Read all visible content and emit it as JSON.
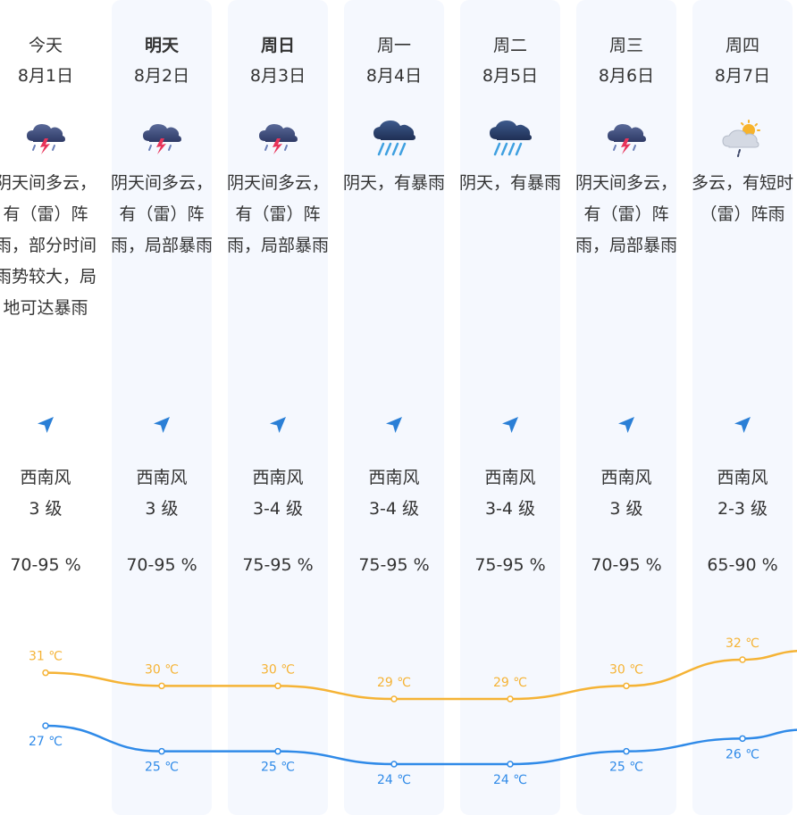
{
  "days": [
    {
      "dow": "今天",
      "date": "8月1日",
      "icon": "thunderstorm-icon",
      "desc": "阴天间多云，有（雷）阵雨，部分时间雨势较大，局地可达暴雨",
      "wind_dir": "西南风",
      "wind_level": "3 级",
      "humidity": "70-95 %",
      "high": "31 ℃",
      "low": "27 ℃",
      "high_val": 31,
      "low_val": 27,
      "bold": false
    },
    {
      "dow": "明天",
      "date": "8月2日",
      "icon": "thunderstorm-icon",
      "desc": "阴天间多云，有（雷）阵雨，局部暴雨",
      "wind_dir": "西南风",
      "wind_level": "3 级",
      "humidity": "70-95 %",
      "high": "30 ℃",
      "low": "25 ℃",
      "high_val": 30,
      "low_val": 25,
      "bold": true
    },
    {
      "dow": "周日",
      "date": "8月3日",
      "icon": "thunderstorm-icon",
      "desc": "阴天间多云，有（雷）阵雨，局部暴雨",
      "wind_dir": "西南风",
      "wind_level": "3-4 级",
      "humidity": "75-95 %",
      "high": "30 ℃",
      "low": "25 ℃",
      "high_val": 30,
      "low_val": 25,
      "bold": true
    },
    {
      "dow": "周一",
      "date": "8月4日",
      "icon": "heavy-rain-icon",
      "desc": "阴天，有暴雨",
      "wind_dir": "西南风",
      "wind_level": "3-4 级",
      "humidity": "75-95 %",
      "high": "29 ℃",
      "low": "24 ℃",
      "high_val": 29,
      "low_val": 24,
      "bold": false
    },
    {
      "dow": "周二",
      "date": "8月5日",
      "icon": "heavy-rain-icon",
      "desc": "阴天，有暴雨",
      "wind_dir": "西南风",
      "wind_level": "3-4 级",
      "humidity": "75-95 %",
      "high": "29 ℃",
      "low": "24 ℃",
      "high_val": 29,
      "low_val": 24,
      "bold": false
    },
    {
      "dow": "周三",
      "date": "8月6日",
      "icon": "thunderstorm-icon",
      "desc": "阴天间多云，有（雷）阵雨，局部暴雨",
      "wind_dir": "西南风",
      "wind_level": "3 级",
      "humidity": "70-95 %",
      "high": "30 ℃",
      "low": "25 ℃",
      "high_val": 30,
      "low_val": 25,
      "bold": false
    },
    {
      "dow": "周四",
      "date": "8月7日",
      "icon": "partly-cloudy-shower-icon",
      "desc": "多云，有短时（雷）阵雨",
      "wind_dir": "西南风",
      "wind_level": "2-3 级",
      "humidity": "65-90 %",
      "high": "32 ℃",
      "low": "26 ℃",
      "high_val": 32,
      "low_val": 26,
      "bold": false
    }
  ],
  "colors": {
    "high_line": "#f5b335",
    "low_line": "#2f8ae8",
    "column_bg": "#f5f8fe",
    "arrow": "#2a7fd6"
  }
}
